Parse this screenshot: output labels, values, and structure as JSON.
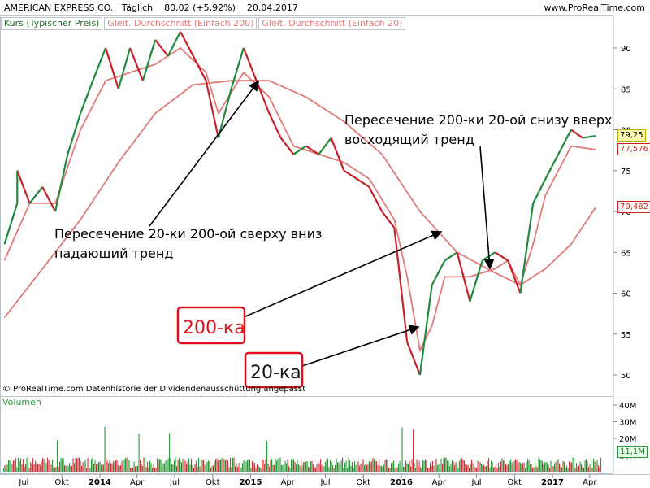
{
  "header": {
    "title": "AMERICAN EXPRESS CO.",
    "interval": "Täglich",
    "last": "80,02 (+5,92%)",
    "date": "20.04.2017",
    "site": "www.ProRealTime.com"
  },
  "legend": {
    "price": "Kurs (Typischer Preis)",
    "ma200": "Gleit. Durchschnitt (Einfach 200)",
    "ma20": "Gleit. Durchschnitt (Einfach 20)"
  },
  "colors": {
    "up": "#1f8a3c",
    "down": "#c8202a",
    "ma": "#e07a78",
    "frame": "#b9c3cc",
    "annotation_box": "#e0101a"
  },
  "price_tags": [
    {
      "label": "79,25",
      "value": 79.25,
      "color": "#000000",
      "border": "#b8b000",
      "bg": "#fff9b0"
    },
    {
      "label": "77,576",
      "value": 77.576,
      "color": "#d02020",
      "border": "#d02020",
      "bg": "#ffffff"
    },
    {
      "label": "70,482",
      "value": 70.482,
      "color": "#d02020",
      "border": "#d02020",
      "bg": "#ffffff"
    }
  ],
  "annotations": {
    "cross_down_line1": "Пересечение 20-ки 200-ой сверху вниз",
    "cross_down_line2": "падающий тренд",
    "cross_up_line1": "Пересечение 200-ки 20-ой снизу вверх",
    "cross_up_line2": "восходящий тренд",
    "label_200": "200-ка",
    "label_20": "20-ка"
  },
  "footer": {
    "copyright": "© ProRealTime.com  Datenhistorie der Dividendenausschüttung angepasst",
    "volume_title": "Volumen"
  },
  "chart_data": {
    "type": "line",
    "x_unit": "date",
    "price_ylim": [
      48,
      94
    ],
    "price_ticks": [
      50,
      55,
      60,
      65,
      70,
      75,
      80,
      85,
      90
    ],
    "volume_ticks": [
      "10M",
      "20M",
      "30M",
      "40M"
    ],
    "volume_ylim": [
      0,
      45
    ],
    "time_labels": [
      {
        "label": "Jul",
        "x": "2013-07"
      },
      {
        "label": "Okt",
        "x": "2013-10"
      },
      {
        "label": "2014",
        "x": "2014-01"
      },
      {
        "label": "Apr",
        "x": "2014-04"
      },
      {
        "label": "Jul",
        "x": "2014-07"
      },
      {
        "label": "Okt",
        "x": "2014-10"
      },
      {
        "label": "2015",
        "x": "2015-01"
      },
      {
        "label": "Apr",
        "x": "2015-04"
      },
      {
        "label": "Jul",
        "x": "2015-07"
      },
      {
        "label": "Okt",
        "x": "2015-10"
      },
      {
        "label": "2016",
        "x": "2016-01"
      },
      {
        "label": "Apr",
        "x": "2016-04"
      },
      {
        "label": "Jul",
        "x": "2016-07"
      },
      {
        "label": "Okt",
        "x": "2016-10"
      },
      {
        "label": "2017",
        "x": "2017-01"
      },
      {
        "label": "Apr",
        "x": "2017-04"
      }
    ],
    "series": [
      {
        "name": "Kurs (Typischer Preis)",
        "points": [
          [
            "2013-05",
            66
          ],
          [
            "2013-06",
            71
          ],
          [
            "2013-06",
            75
          ],
          [
            "2013-07",
            71
          ],
          [
            "2013-08",
            73
          ],
          [
            "2013-09",
            70
          ],
          [
            "2013-10",
            77
          ],
          [
            "2013-11",
            82
          ],
          [
            "2013-12",
            86
          ],
          [
            "2014-01",
            90
          ],
          [
            "2014-02",
            85
          ],
          [
            "2014-03",
            90
          ],
          [
            "2014-04",
            86
          ],
          [
            "2014-05",
            91
          ],
          [
            "2014-06",
            89
          ],
          [
            "2014-07",
            92
          ],
          [
            "2014-08",
            89
          ],
          [
            "2014-09",
            86
          ],
          [
            "2014-10",
            79
          ],
          [
            "2014-11",
            85
          ],
          [
            "2014-12",
            90
          ],
          [
            "2015-01",
            86
          ],
          [
            "2015-02",
            82
          ],
          [
            "2015-03",
            79
          ],
          [
            "2015-04",
            77
          ],
          [
            "2015-05",
            78
          ],
          [
            "2015-06",
            77
          ],
          [
            "2015-07",
            79
          ],
          [
            "2015-08",
            75
          ],
          [
            "2015-09",
            74
          ],
          [
            "2015-10",
            73
          ],
          [
            "2015-11",
            70
          ],
          [
            "2015-12",
            68
          ],
          [
            "2016-01",
            54
          ],
          [
            "2016-02",
            50
          ],
          [
            "2016-03",
            61
          ],
          [
            "2016-04",
            64
          ],
          [
            "2016-05",
            65
          ],
          [
            "2016-06",
            59
          ],
          [
            "2016-07",
            64
          ],
          [
            "2016-08",
            65
          ],
          [
            "2016-09",
            64
          ],
          [
            "2016-10",
            60
          ],
          [
            "2016-11",
            71
          ],
          [
            "2016-12",
            74
          ],
          [
            "2017-01",
            77
          ],
          [
            "2017-02",
            80
          ],
          [
            "2017-03",
            79
          ],
          [
            "2017-04",
            79.25
          ]
        ]
      },
      {
        "name": "Gleit. Durchschnitt (Einfach 200)",
        "points": [
          [
            "2013-05",
            57
          ],
          [
            "2013-08",
            63
          ],
          [
            "2013-11",
            69
          ],
          [
            "2014-02",
            76
          ],
          [
            "2014-05",
            82
          ],
          [
            "2014-08",
            85.5
          ],
          [
            "2014-11",
            86
          ],
          [
            "2015-02",
            86
          ],
          [
            "2015-05",
            84
          ],
          [
            "2015-08",
            81
          ],
          [
            "2015-11",
            77
          ],
          [
            "2016-02",
            70
          ],
          [
            "2016-05",
            65
          ],
          [
            "2016-08",
            62.5
          ],
          [
            "2016-10",
            61
          ],
          [
            "2016-12",
            63
          ],
          [
            "2017-02",
            66
          ],
          [
            "2017-04",
            70.482
          ]
        ]
      },
      {
        "name": "Gleit. Durchschnitt (Einfach 20)",
        "points": [
          [
            "2013-05",
            64
          ],
          [
            "2013-07",
            71
          ],
          [
            "2013-09",
            71
          ],
          [
            "2013-11",
            80
          ],
          [
            "2014-01",
            86
          ],
          [
            "2014-03",
            87
          ],
          [
            "2014-05",
            88
          ],
          [
            "2014-07",
            90
          ],
          [
            "2014-09",
            87
          ],
          [
            "2014-10",
            82
          ],
          [
            "2014-12",
            87
          ],
          [
            "2015-02",
            84
          ],
          [
            "2015-04",
            78
          ],
          [
            "2015-06",
            77
          ],
          [
            "2015-08",
            76
          ],
          [
            "2015-10",
            74
          ],
          [
            "2015-12",
            69
          ],
          [
            "2016-01",
            62
          ],
          [
            "2016-02",
            53
          ],
          [
            "2016-03",
            56
          ],
          [
            "2016-04",
            62
          ],
          [
            "2016-06",
            62
          ],
          [
            "2016-08",
            63
          ],
          [
            "2016-09",
            64
          ],
          [
            "2016-10",
            61
          ],
          [
            "2016-11",
            66
          ],
          [
            "2016-12",
            72
          ],
          [
            "2017-02",
            78
          ],
          [
            "2017-04",
            77.576
          ]
        ]
      }
    ]
  }
}
